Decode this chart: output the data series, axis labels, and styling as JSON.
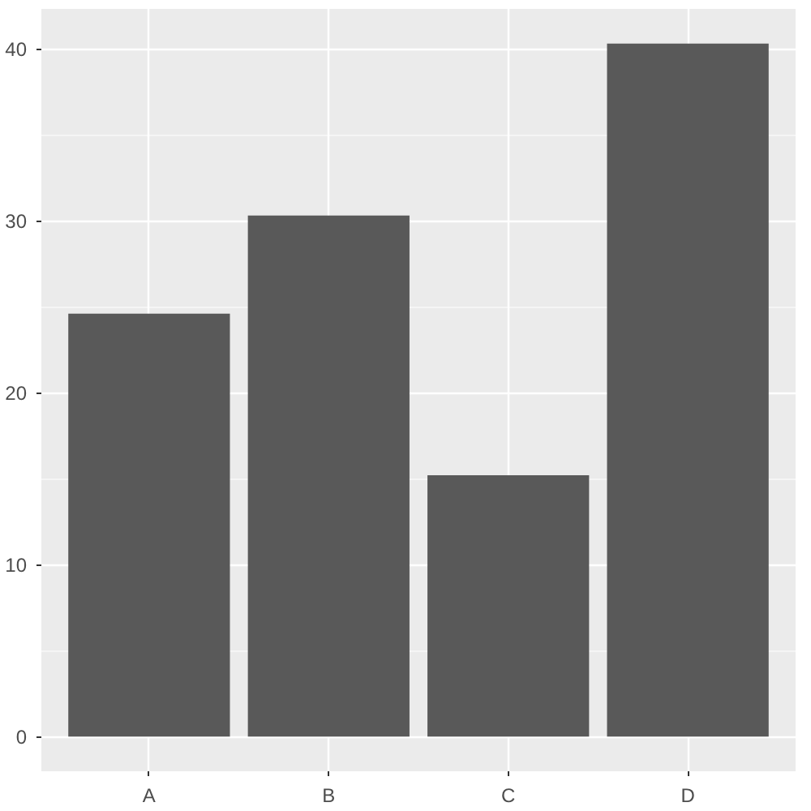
{
  "chart_data": {
    "type": "bar",
    "categories": [
      "A",
      "B",
      "C",
      "D"
    ],
    "values": [
      24.6,
      30.3,
      15.2,
      40.3
    ],
    "color": "#595959",
    "ylim": [
      -2.02,
      42.32
    ],
    "yticks": [
      0,
      10,
      20,
      30,
      40
    ],
    "grid": true
  }
}
